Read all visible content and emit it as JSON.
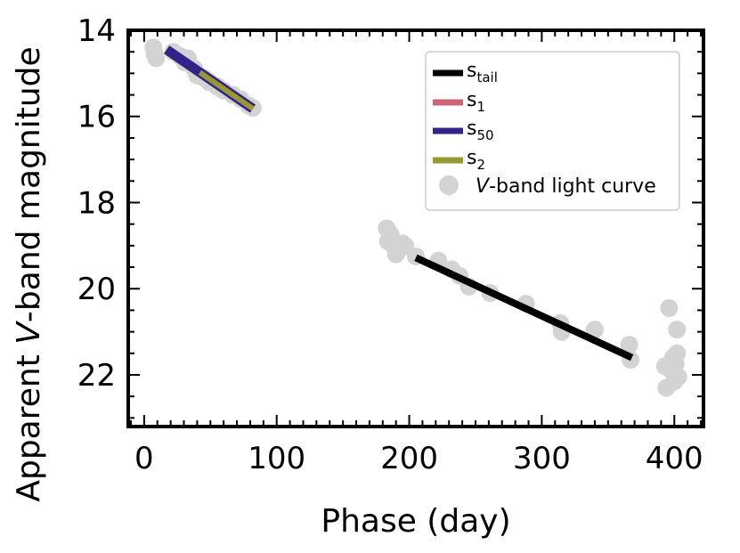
{
  "chart_data": {
    "type": "scatter",
    "title": "",
    "xlabel": "Phase (day)",
    "ylabel_parts": {
      "pre": "Apparent ",
      "italic": "V",
      "post": "-band magnitude"
    },
    "xlim": [
      -12,
      422
    ],
    "ylim": [
      23.2,
      14
    ],
    "x_ticks": [
      0,
      100,
      200,
      300,
      400
    ],
    "y_ticks": [
      14,
      16,
      18,
      20,
      22
    ],
    "light_curve": {
      "name": "V-band light curve",
      "color": "#d3d3d3",
      "points": [
        [
          7,
          14.4
        ],
        [
          8,
          14.55
        ],
        [
          9,
          14.65
        ],
        [
          22,
          14.5
        ],
        [
          27,
          14.6
        ],
        [
          31,
          14.75
        ],
        [
          33,
          14.65
        ],
        [
          38,
          14.9
        ],
        [
          40,
          15.05
        ],
        [
          45,
          15.1
        ],
        [
          49,
          15.2
        ],
        [
          55,
          15.3
        ],
        [
          60,
          15.4
        ],
        [
          67,
          15.5
        ],
        [
          73,
          15.6
        ],
        [
          79,
          15.75
        ],
        [
          82,
          15.8
        ],
        [
          183,
          18.6
        ],
        [
          184,
          18.9
        ],
        [
          186,
          18.75
        ],
        [
          188,
          19.0
        ],
        [
          190,
          19.2
        ],
        [
          192,
          19.1
        ],
        [
          195,
          18.95
        ],
        [
          197,
          19.0
        ],
        [
          205,
          19.25
        ],
        [
          222,
          19.35
        ],
        [
          232,
          19.55
        ],
        [
          238,
          19.7
        ],
        [
          245,
          19.95
        ],
        [
          261,
          20.1
        ],
        [
          288,
          20.35
        ],
        [
          314,
          20.8
        ],
        [
          315,
          21.0
        ],
        [
          340,
          20.95
        ],
        [
          366,
          21.3
        ],
        [
          367,
          21.65
        ],
        [
          393,
          21.8
        ],
        [
          394,
          22.3
        ],
        [
          396,
          20.45
        ],
        [
          398,
          21.9
        ],
        [
          399,
          21.6
        ],
        [
          400,
          22.15
        ],
        [
          401,
          21.75
        ],
        [
          402,
          20.95
        ],
        [
          402,
          21.5
        ],
        [
          403,
          22.05
        ]
      ]
    },
    "fits": [
      {
        "name": "s_tail",
        "label_base": "s",
        "label_sub": "tail",
        "color": "#000000",
        "outline": "",
        "x": [
          205,
          368
        ],
        "y": [
          19.28,
          21.6
        ]
      },
      {
        "name": "s_1",
        "label_base": "s",
        "label_sub": "1",
        "color": "#cc6677",
        "outline": "#332288",
        "x": [
          17,
          42
        ],
        "y": [
          14.45,
          14.98
        ]
      },
      {
        "name": "s_50",
        "label_base": "s",
        "label_sub": "50",
        "color": "#332288",
        "outline": "",
        "x": [
          17,
          82
        ],
        "y": [
          14.45,
          15.82
        ]
      },
      {
        "name": "s_2",
        "label_base": "s",
        "label_sub": "2",
        "color": "#999933",
        "outline": "#332288",
        "x": [
          42,
          82
        ],
        "y": [
          14.98,
          15.82
        ]
      }
    ],
    "legend": {
      "position": "top-right",
      "entries": [
        {
          "key": "s_tail",
          "base": "s",
          "sub": "tail",
          "color": "#000000"
        },
        {
          "key": "s_1",
          "base": "s",
          "sub": "1",
          "color": "#cc6677"
        },
        {
          "key": "s_50",
          "base": "s",
          "sub": "50",
          "color": "#332288"
        },
        {
          "key": "s_2",
          "base": "s",
          "sub": "2",
          "color": "#999933"
        },
        {
          "key": "lc",
          "italic": "V",
          "text": "-band light curve",
          "color": "#d3d3d3"
        }
      ]
    }
  }
}
